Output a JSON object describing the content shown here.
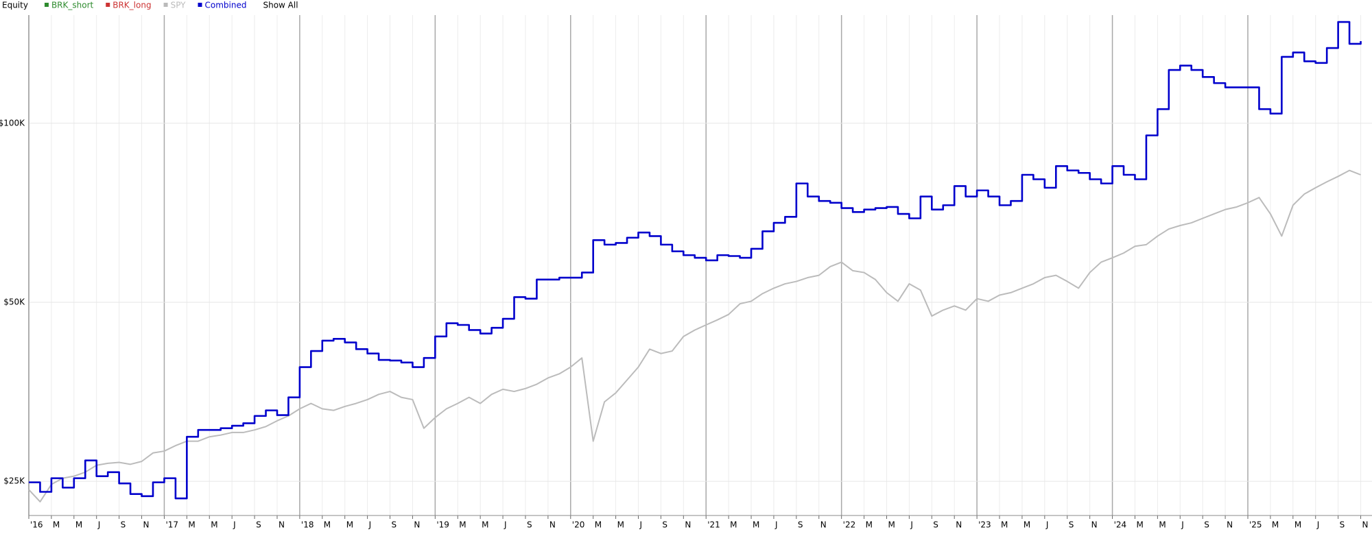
{
  "chart_data": {
    "type": "line",
    "legend_title": "Equity",
    "legend_action": "Show All",
    "log_scale": true,
    "grid": true,
    "legend_position": "top-left",
    "ylim": [
      21900,
      152000
    ],
    "yticks": [
      {
        "value": 25000,
        "label": "$25K"
      },
      {
        "value": 50000,
        "label": "$50K"
      },
      {
        "value": 100000,
        "label": "$100K"
      }
    ],
    "xlim": [
      "2016-01",
      "2025-12"
    ],
    "xticks": [
      {
        "value": "2016-01",
        "label": "'16"
      },
      {
        "value": "2016-03",
        "label": "M"
      },
      {
        "value": "2016-05",
        "label": "M"
      },
      {
        "value": "2016-07",
        "label": "J"
      },
      {
        "value": "2016-09",
        "label": "S"
      },
      {
        "value": "2016-11",
        "label": "N"
      },
      {
        "value": "2017-01",
        "label": "'17"
      },
      {
        "value": "2017-03",
        "label": "M"
      },
      {
        "value": "2017-05",
        "label": "M"
      },
      {
        "value": "2017-07",
        "label": "J"
      },
      {
        "value": "2017-09",
        "label": "S"
      },
      {
        "value": "2017-11",
        "label": "N"
      },
      {
        "value": "2018-01",
        "label": "'18"
      },
      {
        "value": "2018-03",
        "label": "M"
      },
      {
        "value": "2018-05",
        "label": "M"
      },
      {
        "value": "2018-07",
        "label": "J"
      },
      {
        "value": "2018-09",
        "label": "S"
      },
      {
        "value": "2018-11",
        "label": "N"
      },
      {
        "value": "2019-01",
        "label": "'19"
      },
      {
        "value": "2019-03",
        "label": "M"
      },
      {
        "value": "2019-05",
        "label": "M"
      },
      {
        "value": "2019-07",
        "label": "J"
      },
      {
        "value": "2019-09",
        "label": "S"
      },
      {
        "value": "2019-11",
        "label": "N"
      },
      {
        "value": "2020-01",
        "label": "'20"
      },
      {
        "value": "2020-03",
        "label": "M"
      },
      {
        "value": "2020-05",
        "label": "M"
      },
      {
        "value": "2020-07",
        "label": "J"
      },
      {
        "value": "2020-09",
        "label": "S"
      },
      {
        "value": "2020-11",
        "label": "N"
      },
      {
        "value": "2021-01",
        "label": "'21"
      },
      {
        "value": "2021-03",
        "label": "M"
      },
      {
        "value": "2021-05",
        "label": "M"
      },
      {
        "value": "2021-07",
        "label": "J"
      },
      {
        "value": "2021-09",
        "label": "S"
      },
      {
        "value": "2021-11",
        "label": "N"
      },
      {
        "value": "2022-01",
        "label": "'22"
      },
      {
        "value": "2022-03",
        "label": "M"
      },
      {
        "value": "2022-05",
        "label": "M"
      },
      {
        "value": "2022-07",
        "label": "J"
      },
      {
        "value": "2022-09",
        "label": "S"
      },
      {
        "value": "2022-11",
        "label": "N"
      },
      {
        "value": "2023-01",
        "label": "'23"
      },
      {
        "value": "2023-03",
        "label": "M"
      },
      {
        "value": "2023-05",
        "label": "M"
      },
      {
        "value": "2023-07",
        "label": "J"
      },
      {
        "value": "2023-09",
        "label": "S"
      },
      {
        "value": "2023-11",
        "label": "N"
      },
      {
        "value": "2024-01",
        "label": "'24"
      },
      {
        "value": "2024-03",
        "label": "M"
      },
      {
        "value": "2024-05",
        "label": "M"
      },
      {
        "value": "2024-07",
        "label": "J"
      },
      {
        "value": "2024-09",
        "label": "S"
      },
      {
        "value": "2024-11",
        "label": "N"
      },
      {
        "value": "2025-01",
        "label": "'25"
      },
      {
        "value": "2025-03",
        "label": "M"
      },
      {
        "value": "2025-05",
        "label": "M"
      },
      {
        "value": "2025-07",
        "label": "J"
      },
      {
        "value": "2025-09",
        "label": "S"
      },
      {
        "value": "2025-11",
        "label": "N"
      }
    ],
    "x": [
      "2016-01",
      "2016-02",
      "2016-03",
      "2016-04",
      "2016-05",
      "2016-06",
      "2016-07",
      "2016-08",
      "2016-09",
      "2016-10",
      "2016-11",
      "2016-12",
      "2017-01",
      "2017-02",
      "2017-03",
      "2017-04",
      "2017-05",
      "2017-06",
      "2017-07",
      "2017-08",
      "2017-09",
      "2017-10",
      "2017-11",
      "2017-12",
      "2018-01",
      "2018-02",
      "2018-03",
      "2018-04",
      "2018-05",
      "2018-06",
      "2018-07",
      "2018-08",
      "2018-09",
      "2018-10",
      "2018-11",
      "2018-12",
      "2019-01",
      "2019-02",
      "2019-03",
      "2019-04",
      "2019-05",
      "2019-06",
      "2019-07",
      "2019-08",
      "2019-09",
      "2019-10",
      "2019-11",
      "2019-12",
      "2020-01",
      "2020-02",
      "2020-03",
      "2020-04",
      "2020-05",
      "2020-06",
      "2020-07",
      "2020-08",
      "2020-09",
      "2020-10",
      "2020-11",
      "2020-12",
      "2021-01",
      "2021-02",
      "2021-03",
      "2021-04",
      "2021-05",
      "2021-06",
      "2021-07",
      "2021-08",
      "2021-09",
      "2021-10",
      "2021-11",
      "2021-12",
      "2022-01",
      "2022-02",
      "2022-03",
      "2022-04",
      "2022-05",
      "2022-06",
      "2022-07",
      "2022-08",
      "2022-09",
      "2022-10",
      "2022-11",
      "2022-12",
      "2023-01",
      "2023-02",
      "2023-03",
      "2023-04",
      "2023-05",
      "2023-06",
      "2023-07",
      "2023-08",
      "2023-09",
      "2023-10",
      "2023-11",
      "2023-12",
      "2024-01",
      "2024-02",
      "2024-03",
      "2024-04",
      "2024-05",
      "2024-06",
      "2024-07",
      "2024-08",
      "2024-09",
      "2024-10",
      "2024-11",
      "2024-12",
      "2025-01",
      "2025-02",
      "2025-03",
      "2025-04",
      "2025-05",
      "2025-06",
      "2025-07",
      "2025-08",
      "2025-09",
      "2025-10",
      "2025-11"
    ],
    "series": [
      {
        "name": "BRK_short",
        "color": "#2e8b2e",
        "visible": false
      },
      {
        "name": "BRK_long",
        "color": "#cc3333",
        "visible": false
      },
      {
        "name": "SPY",
        "color": "#bbbbbb",
        "visible": true,
        "step": false,
        "values": [
          24200,
          23100,
          24700,
          25300,
          25500,
          25900,
          26600,
          26800,
          26900,
          26700,
          27000,
          27900,
          28100,
          28700,
          29200,
          29200,
          29700,
          29900,
          30200,
          30200,
          30500,
          30900,
          31600,
          32200,
          33100,
          33800,
          33100,
          32900,
          33400,
          33800,
          34300,
          35000,
          35400,
          34600,
          34300,
          30700,
          32000,
          33100,
          33800,
          34600,
          33800,
          35000,
          35700,
          35400,
          35800,
          36400,
          37300,
          37900,
          38900,
          40300,
          29200,
          34000,
          35200,
          37000,
          38900,
          41700,
          41000,
          41400,
          43800,
          44900,
          45800,
          46700,
          47700,
          49700,
          50200,
          51700,
          52800,
          53700,
          54200,
          55000,
          55500,
          57400,
          58400,
          56500,
          56100,
          54600,
          51900,
          50200,
          53700,
          52400,
          47400,
          48500,
          49300,
          48500,
          50700,
          50200,
          51400,
          51900,
          52800,
          53700,
          55000,
          55500,
          54200,
          52800,
          56100,
          58400,
          59400,
          60500,
          62100,
          62500,
          64600,
          66400,
          67300,
          68000,
          69200,
          70400,
          71600,
          72300,
          73500,
          75000,
          70400,
          64600,
          72800,
          76000,
          77900,
          79700,
          81400,
          83300,
          81900
        ]
      },
      {
        "name": "Combined",
        "color": "#0000cc",
        "visible": true,
        "step": true,
        "values": [
          24900,
          24000,
          25300,
          24400,
          25300,
          27100,
          25500,
          25900,
          24800,
          23800,
          23600,
          24900,
          25300,
          23400,
          29700,
          30500,
          30500,
          30700,
          31000,
          31300,
          32200,
          32900,
          32300,
          34600,
          38900,
          41400,
          43100,
          43400,
          42800,
          41700,
          41000,
          40000,
          39900,
          39600,
          38900,
          40300,
          43800,
          46100,
          45800,
          44900,
          44300,
          45300,
          46900,
          51000,
          50700,
          54600,
          54600,
          55000,
          55000,
          56100,
          63600,
          62500,
          62900,
          64200,
          65500,
          64600,
          62500,
          60900,
          60000,
          59400,
          58800,
          60000,
          59800,
          59400,
          61500,
          65800,
          68000,
          69600,
          79200,
          75300,
          74000,
          73500,
          72000,
          70900,
          71600,
          72000,
          72300,
          70400,
          69200,
          75300,
          71600,
          72800,
          78400,
          75300,
          77100,
          75300,
          72800,
          74000,
          81900,
          80500,
          77900,
          84700,
          83300,
          82500,
          80500,
          79200,
          84700,
          81900,
          80500,
          95400,
          105600,
          122900,
          125000,
          122900,
          119600,
          116800,
          114900,
          114900,
          114900,
          105600,
          103800,
          129300,
          131500,
          127100,
          126300,
          133800,
          148000,
          136000,
          137400
        ]
      }
    ]
  }
}
